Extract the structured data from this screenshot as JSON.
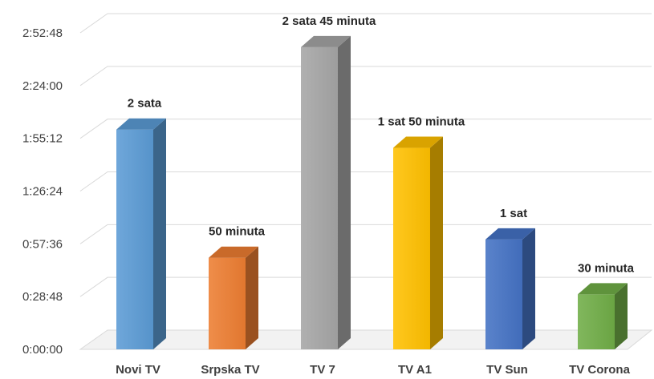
{
  "chart_data": {
    "type": "bar",
    "title": "",
    "xlabel": "",
    "ylabel": "",
    "categories": [
      "Novi TV",
      "Srpska TV",
      "TV 7",
      "TV A1",
      "TV Sun",
      "TV Corona"
    ],
    "values_minutes": [
      120,
      50,
      165,
      110,
      60,
      30
    ],
    "data_labels": [
      "2 sata",
      "50 minuta",
      "2 sata 45 minuta",
      "1 sat 50 minuta",
      "1 sat",
      "30 minuta"
    ],
    "y_ticks": [
      "0:00:00",
      "0:28:48",
      "0:57:36",
      "1:26:24",
      "1:55:12",
      "2:24:00",
      "2:52:48"
    ],
    "ylim_minutes": [
      0,
      172.8
    ],
    "grid": true,
    "legend": "none",
    "colors": [
      "#5b9bd5",
      "#ed7d31",
      "#a5a5a5",
      "#ffc000",
      "#4472c4",
      "#70ad47"
    ]
  }
}
